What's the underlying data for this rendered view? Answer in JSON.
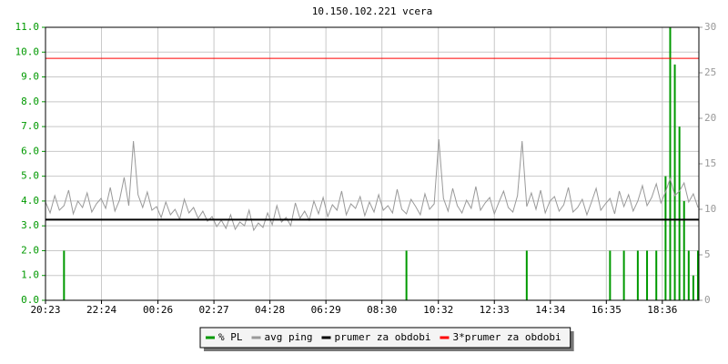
{
  "chart_data": {
    "type": "line",
    "title": "10.150.102.221 vcera",
    "x": [
      0,
      10,
      20,
      30,
      40,
      50,
      60,
      70,
      80,
      90,
      100,
      110,
      120,
      130,
      140,
      150,
      160,
      170,
      180,
      190,
      200,
      210,
      220,
      230,
      240,
      250,
      260,
      270,
      280,
      290,
      300,
      310,
      320,
      330,
      340,
      350,
      360,
      370,
      380,
      390,
      400,
      410,
      420,
      430,
      440,
      450,
      460,
      470,
      480,
      490,
      500,
      510,
      520,
      530,
      540,
      550,
      560,
      570,
      580,
      590,
      600,
      610,
      620,
      630,
      640,
      650,
      660,
      670,
      680,
      690,
      700,
      710,
      720,
      730,
      740,
      750,
      760,
      770,
      780,
      790,
      800,
      810,
      820,
      830,
      840,
      850,
      860,
      870,
      880,
      890,
      900,
      910,
      920,
      930,
      940,
      950,
      960,
      970,
      980,
      990,
      1000,
      1010,
      1020,
      1030,
      1040,
      1050,
      1060,
      1070,
      1080,
      1090,
      1100,
      1110,
      1120,
      1130,
      1140,
      1150,
      1160,
      1170,
      1180,
      1190,
      1200,
      1210,
      1220,
      1230,
      1240,
      1250,
      1260,
      1270,
      1280,
      1290,
      1300,
      1310,
      1320,
      1330,
      1340,
      1350,
      1360,
      1370,
      1380,
      1390,
      1400,
      1410
    ],
    "xlim": [
      0,
      1412
    ],
    "xticks": [
      {
        "value": 0,
        "label": "20:23"
      },
      {
        "value": 121,
        "label": "22:24"
      },
      {
        "value": 243,
        "label": "00:26"
      },
      {
        "value": 364,
        "label": "02:27"
      },
      {
        "value": 485,
        "label": "04:28"
      },
      {
        "value": 606,
        "label": "06:29"
      },
      {
        "value": 727,
        "label": "08:30"
      },
      {
        "value": 849,
        "label": "10:32"
      },
      {
        "value": 970,
        "label": "12:33"
      },
      {
        "value": 1091,
        "label": "14:34"
      },
      {
        "value": 1212,
        "label": "16:35"
      },
      {
        "value": 1333,
        "label": "18:36"
      }
    ],
    "ylim": [
      0,
      11
    ],
    "yticks": [
      {
        "value": 0,
        "label": "0.0"
      },
      {
        "value": 1,
        "label": "1.0"
      },
      {
        "value": 2,
        "label": "2.0"
      },
      {
        "value": 3,
        "label": "3.0"
      },
      {
        "value": 4,
        "label": "4.0"
      },
      {
        "value": 5,
        "label": "5.0"
      },
      {
        "value": 6,
        "label": "6.0"
      },
      {
        "value": 7,
        "label": "7.0"
      },
      {
        "value": 8,
        "label": "8.0"
      },
      {
        "value": 9,
        "label": "9.0"
      },
      {
        "value": 10,
        "label": "10.0"
      },
      {
        "value": 11,
        "label": "11.0"
      }
    ],
    "y2lim": [
      0,
      30
    ],
    "y2ticks": [
      0,
      5,
      10,
      15,
      20,
      25,
      30
    ],
    "grid": true,
    "series": [
      {
        "name": "% PL",
        "color": "#009900",
        "style": "impulse",
        "axis": "y",
        "values": [
          0,
          0,
          0,
          0,
          2,
          0,
          0,
          0,
          0,
          0,
          0,
          0,
          0,
          0,
          0,
          0,
          0,
          0,
          0,
          0,
          0,
          0,
          0,
          0,
          0,
          0,
          0,
          0,
          0,
          0,
          0,
          0,
          0,
          0,
          0,
          0,
          0,
          0,
          0,
          0,
          0,
          0,
          0,
          0,
          0,
          0,
          0,
          0,
          0,
          0,
          0,
          0,
          0,
          0,
          0,
          0,
          0,
          0,
          0,
          0,
          0,
          0,
          0,
          0,
          0,
          0,
          0,
          0,
          0,
          0,
          0,
          0,
          0,
          0,
          0,
          0,
          0,
          0,
          2,
          0,
          0,
          0,
          0,
          0,
          0,
          0,
          0,
          0,
          0,
          0,
          0,
          0,
          0,
          0,
          0,
          0,
          0,
          0,
          0,
          0,
          0,
          0,
          0,
          0,
          2,
          0,
          0,
          0,
          0,
          0,
          0,
          0,
          0,
          0,
          0,
          0,
          0,
          0,
          0,
          0,
          0,
          0,
          2,
          0,
          0,
          2,
          0,
          0,
          2,
          0,
          2,
          0,
          2,
          0,
          5,
          11,
          9.5,
          7,
          4,
          2,
          1,
          2
        ]
      },
      {
        "name": "avg ping",
        "color": "#999999",
        "style": "line",
        "axis": "y2",
        "values": [
          10.8,
          9.6,
          11.5,
          9.9,
          10.4,
          12.1,
          9.5,
          10.9,
          10.2,
          11.8,
          9.7,
          10.6,
          11.2,
          10.1,
          12.4,
          9.8,
          11.0,
          13.5,
          10.4,
          17.5,
          11.6,
          10.2,
          11.9,
          9.9,
          10.3,
          9.1,
          10.8,
          9.4,
          10.0,
          8.9,
          11.1,
          9.6,
          10.2,
          9.0,
          9.8,
          8.7,
          9.2,
          8.1,
          8.8,
          7.9,
          9.4,
          7.8,
          8.6,
          8.2,
          9.9,
          7.7,
          8.5,
          8.0,
          9.6,
          8.3,
          10.4,
          8.6,
          9.1,
          8.2,
          10.7,
          9.0,
          9.8,
          8.8,
          10.9,
          9.5,
          11.3,
          9.2,
          10.5,
          9.9,
          12.0,
          9.4,
          10.6,
          10.1,
          11.4,
          9.3,
          10.8,
          9.7,
          11.6,
          9.9,
          10.4,
          9.6,
          12.2,
          10.0,
          9.5,
          11.1,
          10.3,
          9.4,
          11.7,
          10.0,
          10.6,
          17.7,
          11.2,
          9.8,
          12.3,
          10.4,
          9.6,
          11.0,
          10.1,
          12.5,
          9.9,
          10.7,
          11.3,
          9.5,
          10.8,
          12.0,
          10.2,
          9.7,
          11.5,
          17.5,
          10.3,
          11.8,
          10.0,
          12.1,
          9.6,
          10.9,
          11.4,
          9.8,
          10.5,
          12.4,
          9.7,
          10.2,
          11.1,
          9.4,
          10.8,
          12.3,
          9.9,
          10.6,
          11.2,
          9.5,
          12.0,
          10.3,
          11.6,
          9.8,
          10.9,
          12.6,
          10.4,
          11.3,
          12.8,
          10.7,
          11.9,
          13.4,
          11.5,
          12.0,
          12.9,
          10.8,
          11.7,
          10.2
        ]
      }
    ],
    "reference_lines": [
      {
        "name": "prumer za obdobi",
        "color": "#000000",
        "value": 3.25,
        "axis": "y"
      },
      {
        "name": "3*prumer za obdobi",
        "color": "#ff0000",
        "value": 9.75,
        "axis": "y"
      }
    ]
  }
}
